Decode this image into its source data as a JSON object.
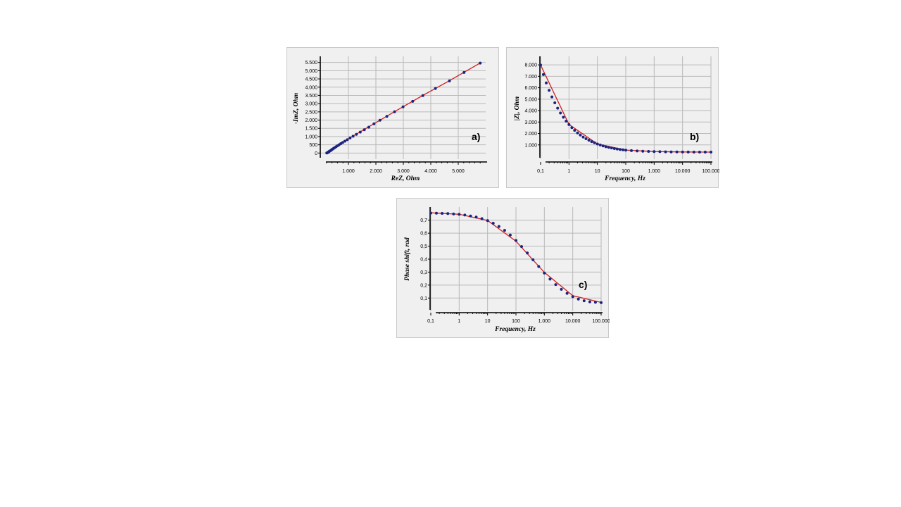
{
  "chart_data": [
    {
      "id": "a",
      "type": "scatter",
      "panel_label": "a)",
      "xlabel": "ReZ, Ohm",
      "ylabel": "-ImZ, Ohm",
      "xlim": [
        0,
        6000
      ],
      "ylim": [
        -200,
        5700
      ],
      "xticks": [
        {
          "v": 1000,
          "label": "1.000"
        },
        {
          "v": 2000,
          "label": "2.000"
        },
        {
          "v": 3000,
          "label": "3.000"
        },
        {
          "v": 4000,
          "label": "4.000"
        },
        {
          "v": 5000,
          "label": "5.000"
        }
      ],
      "yticks": [
        {
          "v": 0,
          "label": "0"
        },
        {
          "v": 500,
          "label": "500"
        },
        {
          "v": 1000,
          "label": "1.000"
        },
        {
          "v": 1500,
          "label": "1.500"
        },
        {
          "v": 2000,
          "label": "2.000"
        },
        {
          "v": 2500,
          "label": "2.500"
        },
        {
          "v": 3000,
          "label": "3.000"
        },
        {
          "v": 3500,
          "label": "3.500"
        },
        {
          "v": 4000,
          "label": "4.000"
        },
        {
          "v": 4500,
          "label": "4.500"
        },
        {
          "v": 5000,
          "label": "5.000"
        },
        {
          "v": 5500,
          "label": "5.500"
        }
      ],
      "series": [
        {
          "role": "measured",
          "color": "#1a237e",
          "points": [
            [
              5800,
              5460
            ],
            [
              5210,
              4890
            ],
            [
              4680,
              4380
            ],
            [
              4170,
              3920
            ],
            [
              3710,
              3490
            ],
            [
              3340,
              3140
            ],
            [
              2990,
              2800
            ],
            [
              2680,
              2500
            ],
            [
              2400,
              2230
            ],
            [
              2150,
              1990
            ],
            [
              1930,
              1770
            ],
            [
              1740,
              1570
            ],
            [
              1580,
              1410
            ],
            [
              1430,
              1270
            ],
            [
              1290,
              1140
            ],
            [
              1170,
              1020
            ],
            [
              1060,
              910
            ],
            [
              960,
              810
            ],
            [
              870,
              720
            ],
            [
              790,
              640
            ],
            [
              720,
              570
            ],
            [
              660,
              500
            ],
            [
              600,
              440
            ],
            [
              550,
              380
            ],
            [
              500,
              330
            ],
            [
              460,
              280
            ],
            [
              420,
              240
            ],
            [
              390,
              200
            ],
            [
              360,
              160
            ],
            [
              330,
              130
            ],
            [
              300,
              100
            ],
            [
              280,
              70
            ],
            [
              260,
              45
            ],
            [
              240,
              25
            ],
            [
              220,
              10
            ],
            [
              210,
              0
            ]
          ]
        },
        {
          "role": "fit",
          "color": "#d02020",
          "points": [
            [
              5800,
              5470
            ],
            [
              4680,
              4390
            ],
            [
              3710,
              3500
            ],
            [
              2680,
              2510
            ],
            [
              1930,
              1780
            ],
            [
              1290,
              1150
            ],
            [
              790,
              650
            ],
            [
              460,
              290
            ],
            [
              280,
              80
            ],
            [
              210,
              0
            ]
          ]
        }
      ]
    },
    {
      "id": "b",
      "type": "scatter",
      "panel_label": "b)",
      "xlabel": "Frequency, Hz",
      "ylabel": "|Z|, Ohm",
      "xscale": "log",
      "xlim": [
        0.1,
        100000
      ],
      "ylim": [
        0,
        8500
      ],
      "xticks": [
        {
          "v": 0.1,
          "label": "0,1"
        },
        {
          "v": 1,
          "label": "1"
        },
        {
          "v": 10,
          "label": "10"
        },
        {
          "v": 100,
          "label": "100"
        },
        {
          "v": 1000,
          "label": "1.000"
        },
        {
          "v": 10000,
          "label": "10.000"
        },
        {
          "v": 100000,
          "label": "100.000"
        }
      ],
      "yticks": [
        {
          "v": 1000,
          "label": "1.000"
        },
        {
          "v": 2000,
          "label": "2.000"
        },
        {
          "v": 3000,
          "label": "3.000"
        },
        {
          "v": 4000,
          "label": "4.000"
        },
        {
          "v": 5000,
          "label": "5.000"
        },
        {
          "v": 6000,
          "label": "6.000"
        },
        {
          "v": 7000,
          "label": "7.000"
        },
        {
          "v": 8000,
          "label": "8.000"
        }
      ],
      "series": [
        {
          "role": "measured",
          "color": "#1a237e",
          "points": [
            [
              0.1,
              7980
            ],
            [
              0.126,
              7150
            ],
            [
              0.158,
              6420
            ],
            [
              0.2,
              5780
            ],
            [
              0.251,
              5200
            ],
            [
              0.316,
              4680
            ],
            [
              0.398,
              4210
            ],
            [
              0.5,
              3790
            ],
            [
              0.631,
              3420
            ],
            [
              0.794,
              3080
            ],
            [
              1,
              2780
            ],
            [
              1.26,
              2510
            ],
            [
              1.58,
              2270
            ],
            [
              2,
              2050
            ],
            [
              2.51,
              1860
            ],
            [
              3.16,
              1690
            ],
            [
              3.98,
              1540
            ],
            [
              5.01,
              1410
            ],
            [
              6.31,
              1290
            ],
            [
              7.94,
              1180
            ],
            [
              10,
              1080
            ],
            [
              12.6,
              990
            ],
            [
              15.8,
              910
            ],
            [
              20,
              840
            ],
            [
              25.1,
              780
            ],
            [
              31.6,
              730
            ],
            [
              39.8,
              680
            ],
            [
              50.1,
              640
            ],
            [
              63.1,
              600
            ],
            [
              79.4,
              570
            ],
            [
              100,
              540
            ],
            [
              158,
              500
            ],
            [
              251,
              470
            ],
            [
              398,
              450
            ],
            [
              631,
              430
            ],
            [
              1000,
              415
            ],
            [
              1585,
              405
            ],
            [
              2512,
              395
            ],
            [
              3981,
              388
            ],
            [
              6310,
              382
            ],
            [
              10000,
              378
            ],
            [
              15849,
              374
            ],
            [
              25119,
              372
            ],
            [
              39811,
              370
            ],
            [
              63096,
              369
            ],
            [
              100000,
              368
            ]
          ]
        },
        {
          "role": "fit",
          "color": "#d02020",
          "points": [
            [
              0.1,
              7990
            ],
            [
              1,
              2790
            ],
            [
              10,
              1085
            ],
            [
              100,
              545
            ],
            [
              1000,
              418
            ],
            [
              10000,
              379
            ],
            [
              100000,
              368
            ]
          ]
        }
      ]
    },
    {
      "id": "c",
      "type": "scatter",
      "panel_label": "c)",
      "xlabel": "Frequency, Hz",
      "ylabel": "Phase shift, rad",
      "xscale": "log",
      "xlim": [
        0.1,
        100000
      ],
      "ylim": [
        0.02,
        0.78
      ],
      "xticks": [
        {
          "v": 0.1,
          "label": "0,1"
        },
        {
          "v": 1,
          "label": "1"
        },
        {
          "v": 10,
          "label": "10"
        },
        {
          "v": 100,
          "label": "100"
        },
        {
          "v": 1000,
          "label": "1.000"
        },
        {
          "v": 10000,
          "label": "10.000"
        },
        {
          "v": 100000,
          "label": "100.000"
        }
      ],
      "yticks": [
        {
          "v": 0.1,
          "label": "0,1"
        },
        {
          "v": 0.2,
          "label": "0,2"
        },
        {
          "v": 0.3,
          "label": "0,3"
        },
        {
          "v": 0.4,
          "label": "0,4"
        },
        {
          "v": 0.5,
          "label": "0,5"
        },
        {
          "v": 0.6,
          "label": "0,6"
        },
        {
          "v": 0.7,
          "label": "0,7"
        }
      ],
      "series": [
        {
          "role": "measured",
          "color": "#1a237e",
          "points": [
            [
              0.1,
              0.755
            ],
            [
              0.158,
              0.754
            ],
            [
              0.251,
              0.753
            ],
            [
              0.398,
              0.751
            ],
            [
              0.631,
              0.748
            ],
            [
              1,
              0.745
            ],
            [
              1.58,
              0.74
            ],
            [
              2.51,
              0.733
            ],
            [
              3.98,
              0.724
            ],
            [
              6.31,
              0.712
            ],
            [
              10,
              0.697
            ],
            [
              15.8,
              0.677
            ],
            [
              25.1,
              0.652
            ],
            [
              39.8,
              0.622
            ],
            [
              63.1,
              0.586
            ],
            [
              100,
              0.544
            ],
            [
              158,
              0.497
            ],
            [
              251,
              0.447
            ],
            [
              398,
              0.395
            ],
            [
              631,
              0.343
            ],
            [
              1000,
              0.293
            ],
            [
              1585,
              0.246
            ],
            [
              2512,
              0.204
            ],
            [
              3981,
              0.167
            ],
            [
              6310,
              0.136
            ],
            [
              10000,
              0.111
            ],
            [
              15849,
              0.092
            ],
            [
              25119,
              0.079
            ],
            [
              39811,
              0.071
            ],
            [
              63096,
              0.067
            ],
            [
              100000,
              0.065
            ]
          ]
        },
        {
          "role": "fit",
          "color": "#d02020",
          "points": [
            [
              0.1,
              0.757
            ],
            [
              1,
              0.746
            ],
            [
              10,
              0.698
            ],
            [
              100,
              0.538
            ],
            [
              1000,
              0.298
            ],
            [
              10000,
              0.118
            ],
            [
              100000,
              0.066
            ]
          ]
        }
      ]
    }
  ]
}
